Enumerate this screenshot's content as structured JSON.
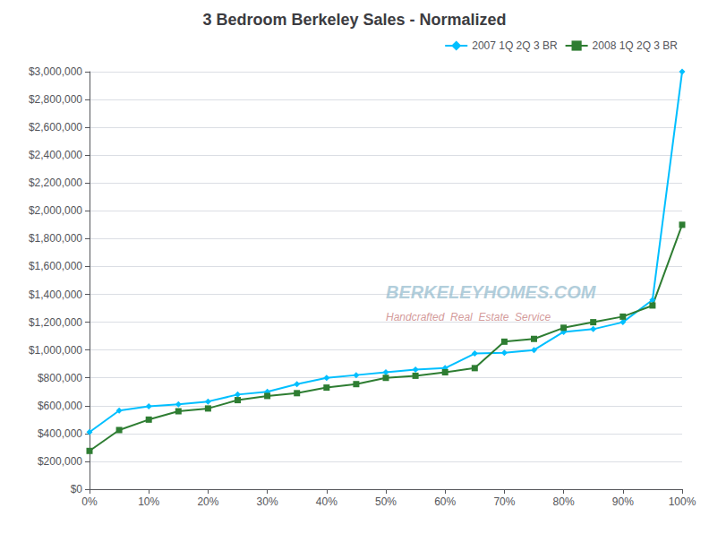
{
  "chart_data": {
    "type": "line",
    "title": "3 Bedroom Berkeley Sales - Normalized",
    "x": [
      0,
      5,
      10,
      15,
      20,
      25,
      30,
      35,
      40,
      45,
      50,
      55,
      60,
      65,
      70,
      75,
      80,
      85,
      90,
      95,
      100
    ],
    "series": [
      {
        "name": "2007 1Q 2Q 3 BR",
        "color": "#00BFFF",
        "marker": "diamond",
        "values": [
          410000,
          565000,
          595000,
          610000,
          630000,
          680000,
          700000,
          755000,
          800000,
          820000,
          840000,
          860000,
          870000,
          975000,
          980000,
          1000000,
          1130000,
          1150000,
          1200000,
          1360000,
          3000000
        ]
      },
      {
        "name": "2008 1Q 2Q 3 BR",
        "color": "#2E7D32",
        "marker": "square",
        "values": [
          275000,
          425000,
          500000,
          560000,
          580000,
          640000,
          670000,
          690000,
          730000,
          755000,
          800000,
          815000,
          840000,
          870000,
          1060000,
          1080000,
          1160000,
          1200000,
          1240000,
          1320000,
          1900000
        ]
      }
    ],
    "xlim": [
      0,
      100
    ],
    "xticks": [
      {
        "value": 0,
        "label": "0%"
      },
      {
        "value": 10,
        "label": "10%"
      },
      {
        "value": 20,
        "label": "20%"
      },
      {
        "value": 30,
        "label": "30%"
      },
      {
        "value": 40,
        "label": "40%"
      },
      {
        "value": 50,
        "label": "50%"
      },
      {
        "value": 60,
        "label": "60%"
      },
      {
        "value": 70,
        "label": "70%"
      },
      {
        "value": 80,
        "label": "80%"
      },
      {
        "value": 90,
        "label": "90%"
      },
      {
        "value": 100,
        "label": "100%"
      }
    ],
    "ylim": [
      0,
      3000000
    ],
    "yticks": [
      {
        "value": 0,
        "label": "$0"
      },
      {
        "value": 200000,
        "label": "$200,000"
      },
      {
        "value": 400000,
        "label": "$400,000"
      },
      {
        "value": 600000,
        "label": "$600,000"
      },
      {
        "value": 800000,
        "label": "$800,000"
      },
      {
        "value": 1000000,
        "label": "$1,000,000"
      },
      {
        "value": 1200000,
        "label": "$1,200,000"
      },
      {
        "value": 1400000,
        "label": "$1,400,000"
      },
      {
        "value": 1600000,
        "label": "$1,600,000"
      },
      {
        "value": 1800000,
        "label": "$1,800,000"
      },
      {
        "value": 2000000,
        "label": "$2,000,000"
      },
      {
        "value": 2200000,
        "label": "$2,200,000"
      },
      {
        "value": 2400000,
        "label": "$2,400,000"
      },
      {
        "value": 2600000,
        "label": "$2,600,000"
      },
      {
        "value": 2800000,
        "label": "$2,800,000"
      },
      {
        "value": 3000000,
        "label": "$3,000,000"
      }
    ],
    "grid": true,
    "legend": "upper right",
    "annotations": [
      "BERKELEYHOMES.COM",
      "Handcrafted  Real  Estate  Service"
    ]
  }
}
